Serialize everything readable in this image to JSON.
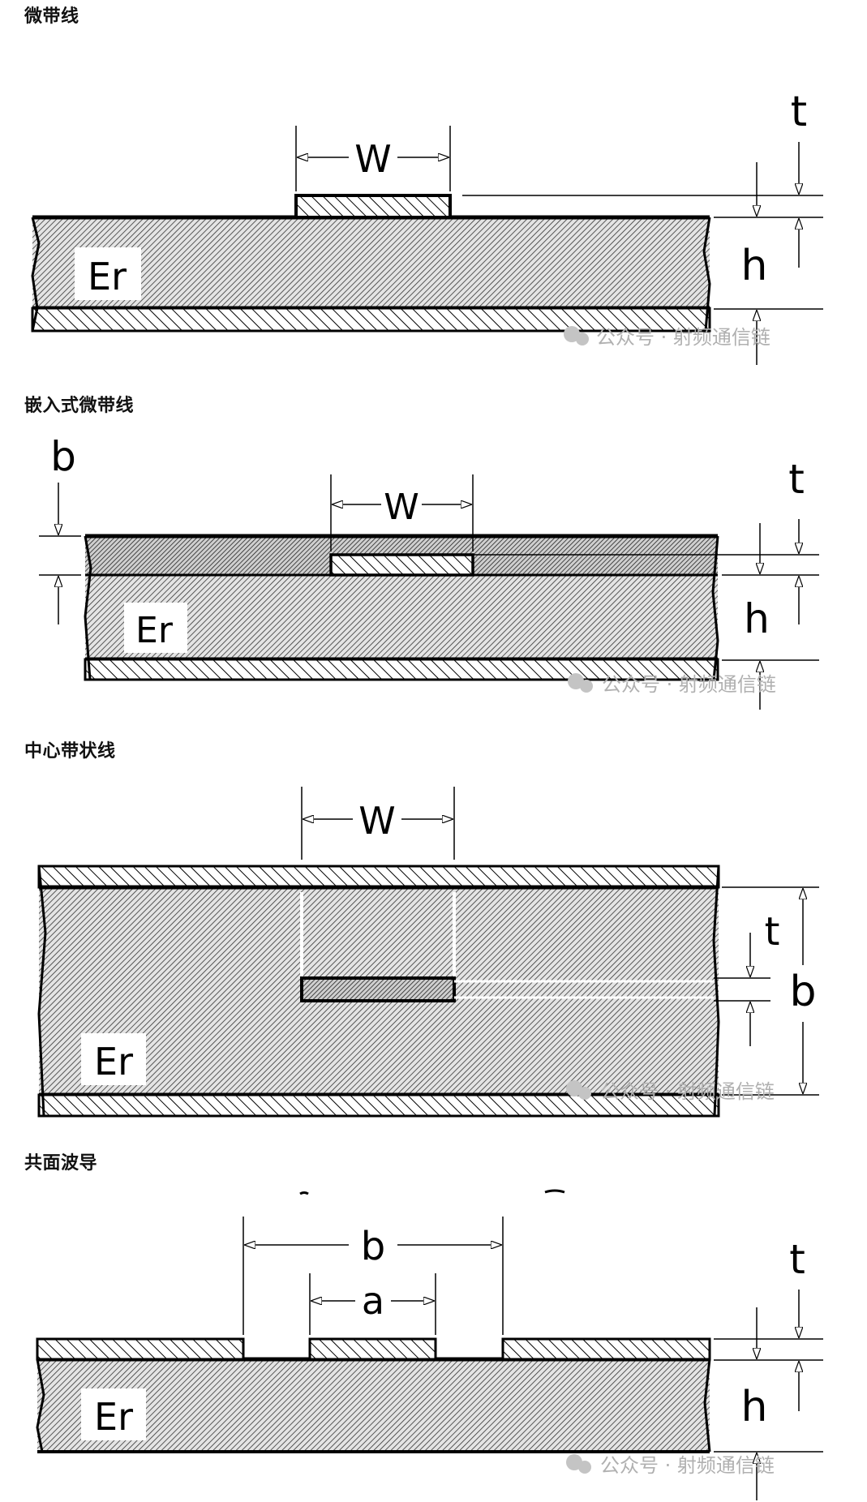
{
  "sections": [
    {
      "title": "微带线"
    },
    {
      "title": "嵌入式微带线"
    },
    {
      "title": "中心带状线"
    },
    {
      "title": "共面波导"
    }
  ],
  "labels": {
    "er": "Er",
    "w": "W",
    "t": "t",
    "h": "h",
    "b": "b",
    "a": "a"
  },
  "watermark": "公众号 · 射频通信链",
  "colors": {
    "line": "#000000",
    "hatch": "#555555",
    "watermark": "#b0b0b0"
  }
}
